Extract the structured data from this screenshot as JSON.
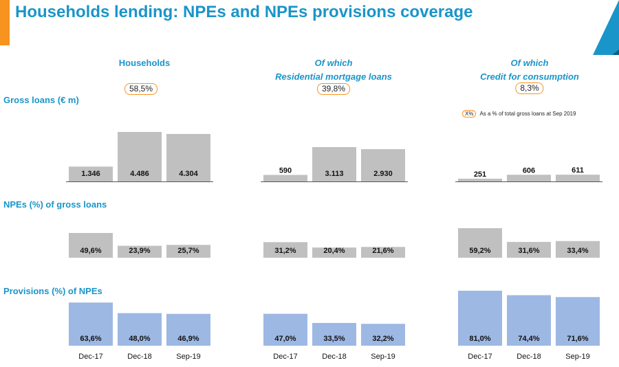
{
  "title": "Households lending: NPEs and NPEs provisions coverage",
  "groups": [
    {
      "line1": "Households",
      "line2": "",
      "share": "58,5%"
    },
    {
      "line1": "Of which",
      "line2": "Residential mortgage loans",
      "share": "39,8%"
    },
    {
      "line1": "Of which",
      "line2": "Credit for consumption",
      "share": "8,3%"
    }
  ],
  "legend": {
    "chip": "X%",
    "text": "As a % of total gross loans at Sep 2019"
  },
  "colors": {
    "grey_bar": "#c0c0c0",
    "blue_bar": "#9db8e3",
    "accent": "#f7931e",
    "title": "#1a95c9"
  },
  "chart_data": [
    {
      "type": "bar",
      "title": "Gross loans (€ m)",
      "categories": [
        "Dec-17",
        "Dec-18",
        "Sep-19"
      ],
      "series": [
        {
          "name": "Households",
          "values": [
            1346,
            4486,
            4304
          ],
          "labels": [
            "1.346",
            "4.486",
            "4.304"
          ]
        },
        {
          "name": "Residential mortgage loans",
          "values": [
            590,
            3113,
            2930
          ],
          "labels": [
            "590",
            "3.113",
            "2.930"
          ]
        },
        {
          "name": "Credit for consumption",
          "values": [
            251,
            606,
            611
          ],
          "labels": [
            "251",
            "606",
            "611"
          ]
        }
      ]
    },
    {
      "type": "bar",
      "title": "NPEs (%) of gross loans",
      "categories": [
        "Dec-17",
        "Dec-18",
        "Sep-19"
      ],
      "series": [
        {
          "name": "Households",
          "values": [
            49.6,
            23.9,
            25.7
          ],
          "labels": [
            "49,6%",
            "23,9%",
            "25,7%"
          ]
        },
        {
          "name": "Residential mortgage loans",
          "values": [
            31.2,
            20.4,
            21.6
          ],
          "labels": [
            "31,2%",
            "20,4%",
            "21,6%"
          ]
        },
        {
          "name": "Credit for consumption",
          "values": [
            59.2,
            31.6,
            33.4
          ],
          "labels": [
            "59,2%",
            "31,6%",
            "33,4%"
          ]
        }
      ]
    },
    {
      "type": "bar",
      "title": "Provisions (%) of NPEs",
      "categories": [
        "Dec-17",
        "Dec-18",
        "Sep-19"
      ],
      "series": [
        {
          "name": "Households",
          "values": [
            63.6,
            48.0,
            46.9
          ],
          "labels": [
            "63,6%",
            "48,0%",
            "46,9%"
          ]
        },
        {
          "name": "Residential mortgage loans",
          "values": [
            47.0,
            33.5,
            32.2
          ],
          "labels": [
            "47,0%",
            "33,5%",
            "32,2%"
          ]
        },
        {
          "name": "Credit for consumption",
          "values": [
            81.0,
            74.4,
            71.6
          ],
          "labels": [
            "81,0%",
            "74,4%",
            "71,6%"
          ]
        }
      ]
    }
  ]
}
